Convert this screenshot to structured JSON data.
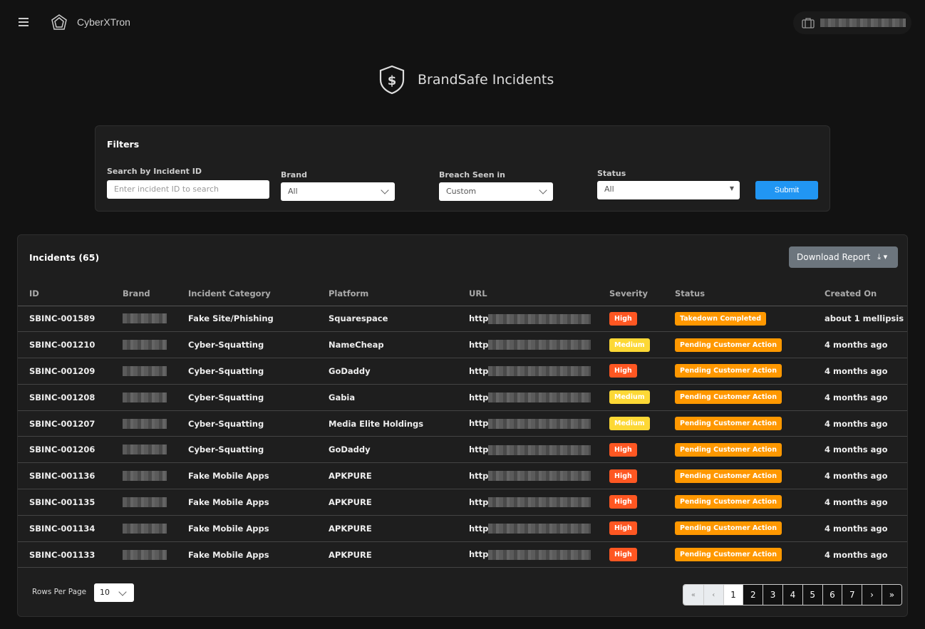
{
  "header": {
    "app_name": "CyberXTron",
    "icons": {
      "menu": "hamburger-icon",
      "user": "briefcase-icon"
    }
  },
  "page": {
    "title": "BrandSafe Incidents",
    "icon": "shield-dollar-icon"
  },
  "filters": {
    "title": "Filters",
    "search_label": "Search by Incident ID",
    "search_placeholder": "Enter incident ID to search",
    "search_value": "",
    "brand_label": "Brand",
    "brand_value": "All",
    "breach_label": "Breach Seen in",
    "breach_value": "Custom",
    "status_label": "Status",
    "status_value": "All",
    "submit": "Submit"
  },
  "incidents": {
    "title": "Incidents (65)",
    "download": "Download Report",
    "columns": [
      "ID",
      "Brand",
      "Incident Category",
      "Platform",
      "URL",
      "Severity",
      "Status",
      "Created On"
    ],
    "rows": [
      {
        "id": "SBINC-001589",
        "category": "Fake Site/Phishing",
        "platform": "Squarespace",
        "url": "http",
        "severity": "High",
        "status": "Takedown Completed",
        "created": "about 1 mellipsis"
      },
      {
        "id": "SBINC-001210",
        "category": "Cyber-Squatting",
        "platform": "NameCheap",
        "url": "http",
        "severity": "Medium",
        "status": "Pending Customer Action",
        "created": "4 months ago"
      },
      {
        "id": "SBINC-001209",
        "category": "Cyber-Squatting",
        "platform": "GoDaddy",
        "url": "http",
        "severity": "High",
        "status": "Pending Customer Action",
        "created": "4 months ago"
      },
      {
        "id": "SBINC-001208",
        "category": "Cyber-Squatting",
        "platform": "Gabia",
        "url": "http",
        "severity": "Medium",
        "status": "Pending Customer Action",
        "created": "4 months ago"
      },
      {
        "id": "SBINC-001207",
        "category": "Cyber-Squatting",
        "platform": "Media Elite Holdings",
        "url": "http",
        "severity": "Medium",
        "status": "Pending Customer Action",
        "created": "4 months ago"
      },
      {
        "id": "SBINC-001206",
        "category": "Cyber-Squatting",
        "platform": "GoDaddy",
        "url": "http",
        "severity": "High",
        "status": "Pending Customer Action",
        "created": "4 months ago"
      },
      {
        "id": "SBINC-001136",
        "category": "Fake Mobile Apps",
        "platform": "APKPURE",
        "url": "http",
        "severity": "High",
        "status": "Pending Customer Action",
        "created": "4 months ago"
      },
      {
        "id": "SBINC-001135",
        "category": "Fake Mobile Apps",
        "platform": "APKPURE",
        "url": "http",
        "severity": "High",
        "status": "Pending Customer Action",
        "created": "4 months ago"
      },
      {
        "id": "SBINC-001134",
        "category": "Fake Mobile Apps",
        "platform": "APKPURE",
        "url": "http",
        "severity": "High",
        "status": "Pending Customer Action",
        "created": "4 months ago"
      },
      {
        "id": "SBINC-001133",
        "category": "Fake Mobile Apps",
        "platform": "APKPURE",
        "url": "http",
        "severity": "High",
        "status": "Pending Customer Action",
        "created": "4 months ago"
      }
    ],
    "rows_per_page_label": "Rows Per Page",
    "rows_per_page": "10",
    "pagination": {
      "first": "«",
      "prev": "‹",
      "pages": [
        "1",
        "2",
        "3",
        "4",
        "5",
        "6",
        "7"
      ],
      "current": "1",
      "next": "›",
      "last": "»"
    }
  },
  "colors": {
    "high": "#ff5722",
    "medium": "#fdd835",
    "status": "#ff9800",
    "submit": "#2196f3"
  }
}
